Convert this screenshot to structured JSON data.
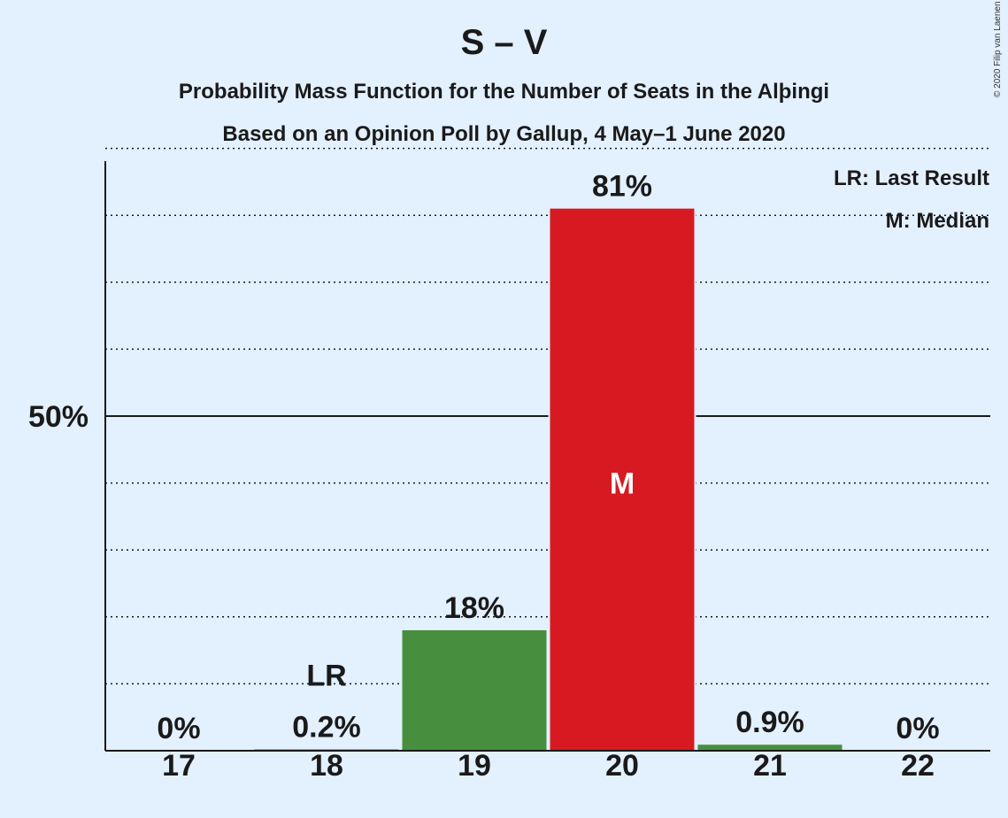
{
  "header": {
    "title": "S – V",
    "subtitle": "Probability Mass Function for the Number of Seats in the Alþingi",
    "subtitle2": "Based on an Opinion Poll by Gallup, 4 May–1 June 2020",
    "copyright": "© 2020 Filip van Laenen"
  },
  "legend": {
    "last_result": "LR: Last Result",
    "median": "M: Median"
  },
  "colors": {
    "background": "#e3f0fe",
    "bar_green": "#478f3f",
    "bar_red": "#d71a21",
    "text": "#1a1a1a"
  },
  "chart_data": {
    "type": "bar",
    "title": "S – V",
    "categories": [
      "17",
      "18",
      "19",
      "20",
      "21",
      "22"
    ],
    "values": [
      0,
      0.2,
      18,
      81,
      0.9,
      0
    ],
    "value_labels": [
      "0%",
      "0.2%",
      "18%",
      "81%",
      "0.9%",
      "0%"
    ],
    "bar_colors": [
      "#478f3f",
      "#478f3f",
      "#478f3f",
      "#d71a21",
      "#478f3f",
      "#478f3f"
    ],
    "last_result_category": "18",
    "last_result_label": "LR",
    "median_category": "20",
    "median_label": "M",
    "ylim": [
      0,
      90
    ],
    "y_ticks": [
      50
    ],
    "y_tick_labels": [
      "50%"
    ],
    "grid": true,
    "legend_position": "top-right"
  }
}
